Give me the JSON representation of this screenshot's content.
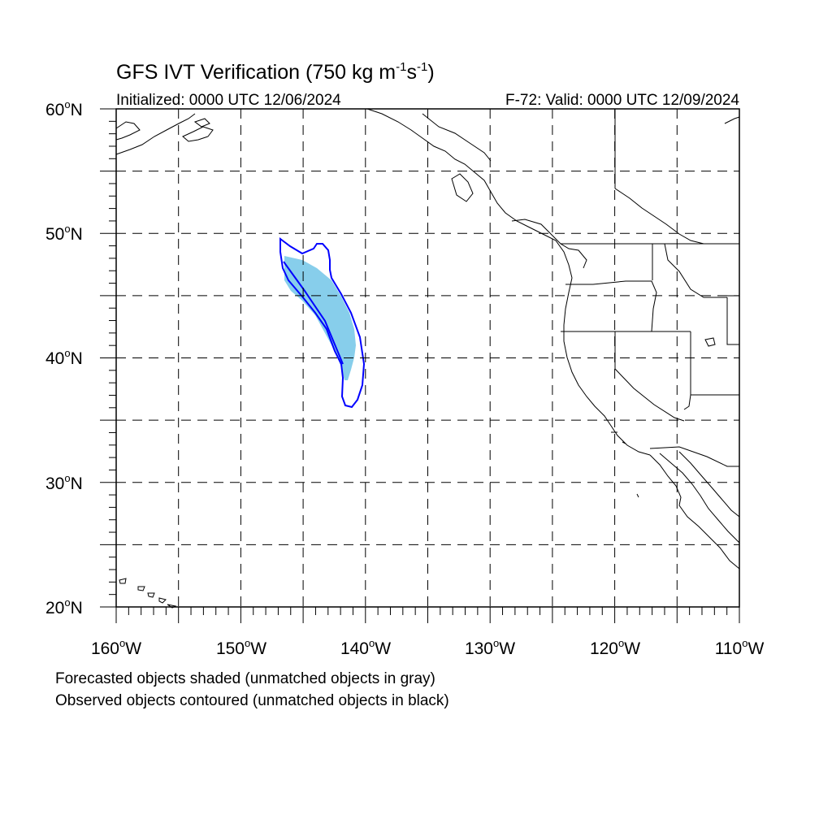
{
  "header": {
    "title_main": "GFS IVT Verification (750 kg m",
    "title_sup1": "-1",
    "title_mid": "s",
    "title_sup2": "-1",
    "title_end": ")",
    "initialized": "Initialized: 0000 UTC 12/06/2024",
    "valid": "F-72: Valid: 0000 UTC 12/09/2024"
  },
  "map": {
    "projection": "cylindrical equidistant",
    "lon_range": [
      -160,
      -110
    ],
    "lat_range": [
      20,
      60
    ],
    "grid": "dashed every 5 degrees",
    "lat_labels": [
      "60",
      "50",
      "40",
      "30",
      "20"
    ],
    "lat_suffix": "N",
    "lon_labels": [
      "160",
      "150",
      "140",
      "130",
      "120",
      "110"
    ],
    "lon_suffix": "W",
    "degree_symbol": "o",
    "colors": {
      "forecast_fill": "#87ceeb",
      "observed_contour": "#0000ff",
      "coastline": "#000000",
      "grid": "#000000"
    }
  },
  "legend": {
    "line1": "Forecasted objects shaded (unmatched objects in gray)",
    "line2": "Observed objects contoured (unmatched objects in black)"
  }
}
